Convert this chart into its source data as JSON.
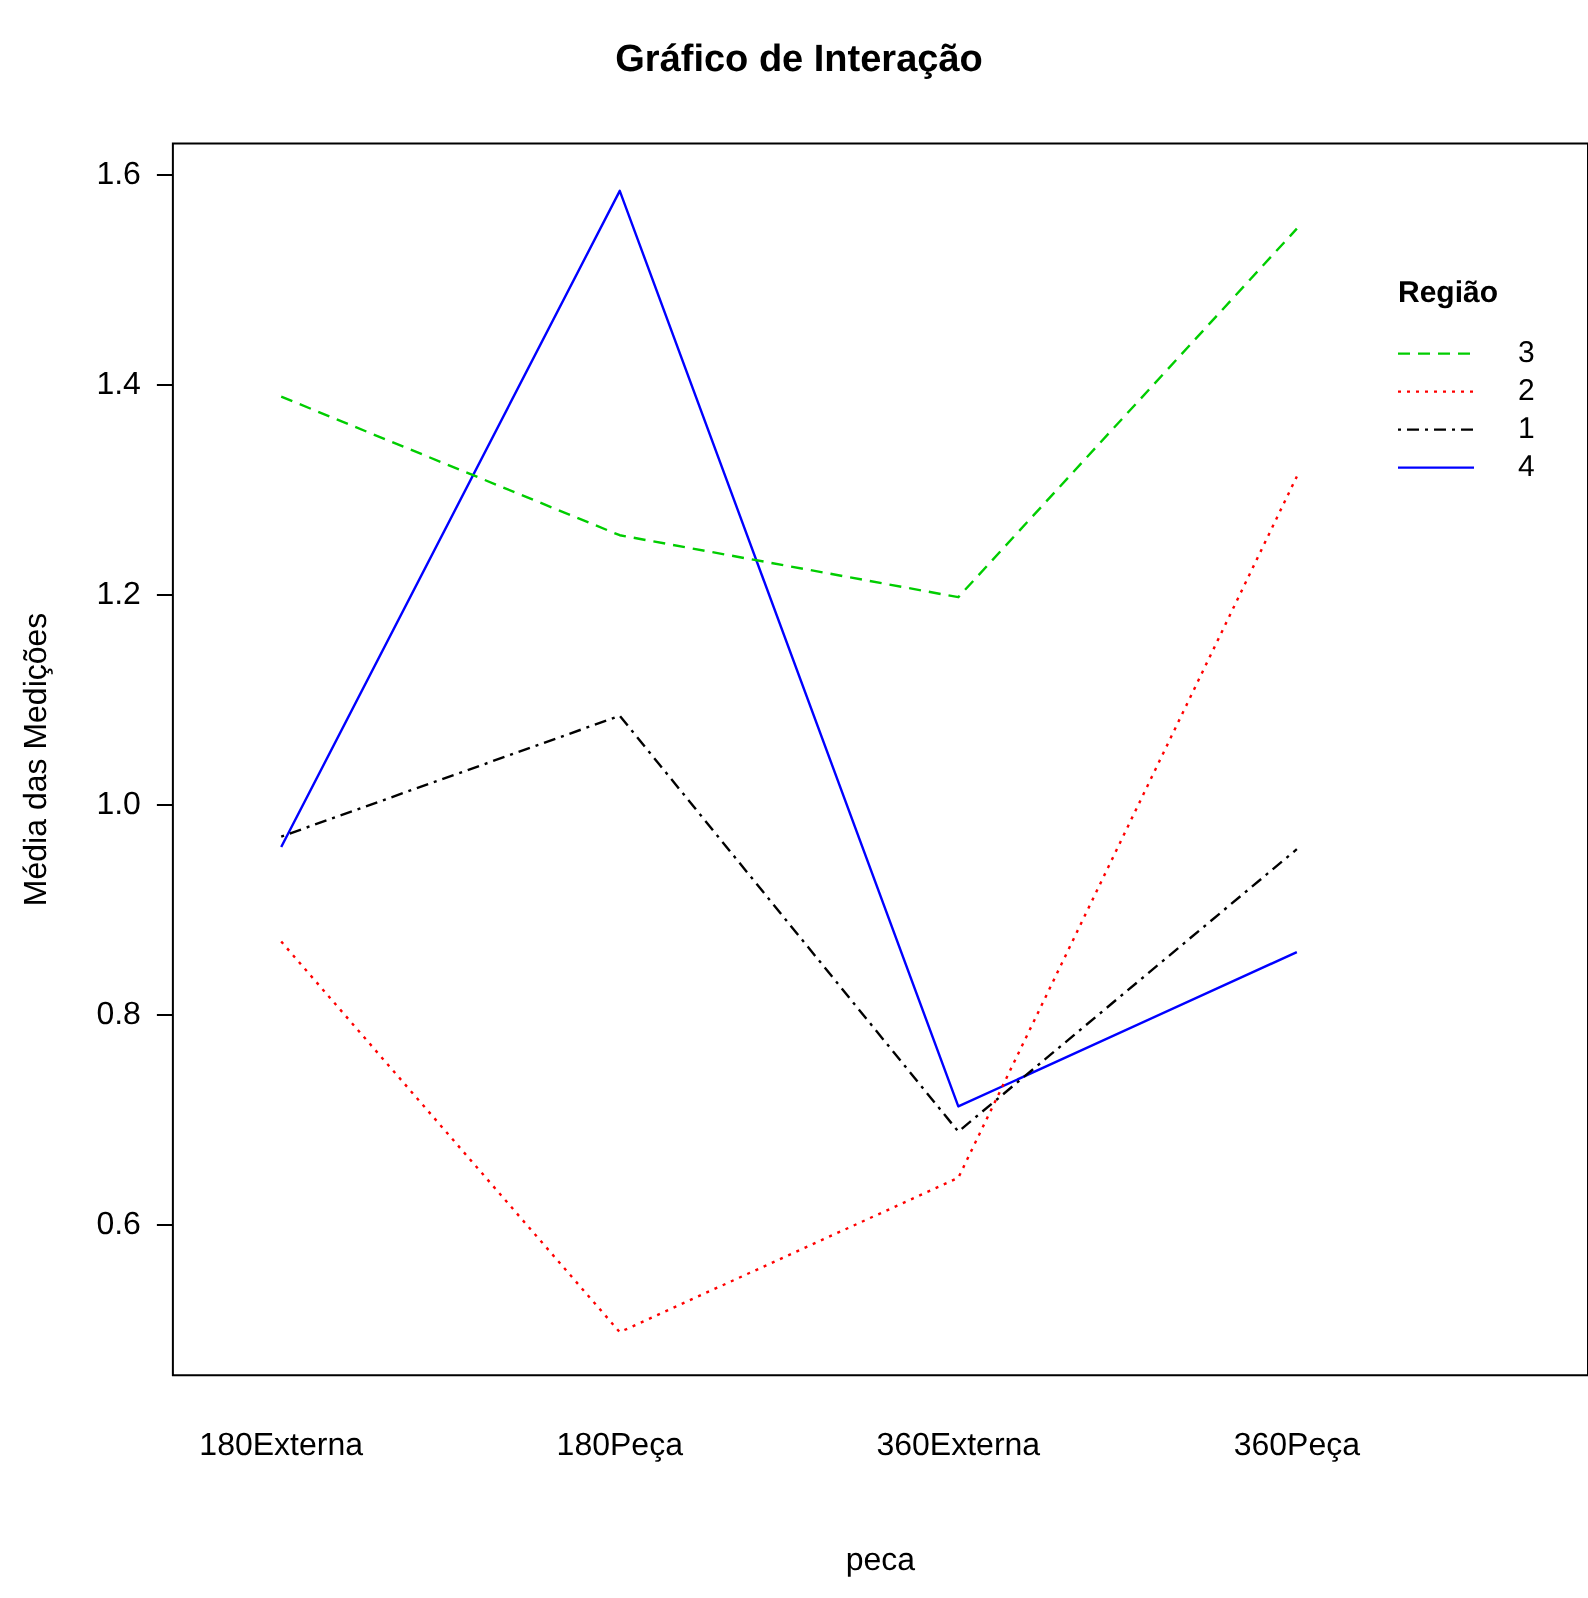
{
  "chart_data": {
    "type": "line",
    "title": "Gráfico de Interação",
    "xlabel": "peca",
    "ylabel": "Média das Medições",
    "legend_title": "Região",
    "legend": "top right",
    "grid": false,
    "marker": "none",
    "categories": [
      "180Externa",
      "180Peça",
      "360Externa",
      "360Peça"
    ],
    "ylim": [
      0.457,
      1.63
    ],
    "yticks": [
      {
        "value": 0.6,
        "label": "0.6"
      },
      {
        "value": 0.8,
        "label": "0.8"
      },
      {
        "value": 1.0,
        "label": "1.0"
      },
      {
        "value": 1.2,
        "label": "1.2"
      },
      {
        "value": 1.4,
        "label": "1.4"
      },
      {
        "value": 1.6,
        "label": "1.6"
      }
    ],
    "series": [
      {
        "name": "3",
        "color": "#00cd00",
        "line_style": "dashed",
        "values": [
          1.389,
          1.257,
          1.198,
          1.549
        ]
      },
      {
        "name": "2",
        "color": "#ff0000",
        "line_style": "dotted",
        "values": [
          0.87,
          0.498,
          0.645,
          1.313
        ]
      },
      {
        "name": "1",
        "color": "#000000",
        "line_style": "dashdot",
        "values": [
          0.97,
          1.085,
          0.689,
          0.958
        ]
      },
      {
        "name": "4",
        "color": "#0000ff",
        "line_style": "solid",
        "values": [
          0.96,
          1.585,
          0.713,
          0.86
        ]
      }
    ]
  }
}
